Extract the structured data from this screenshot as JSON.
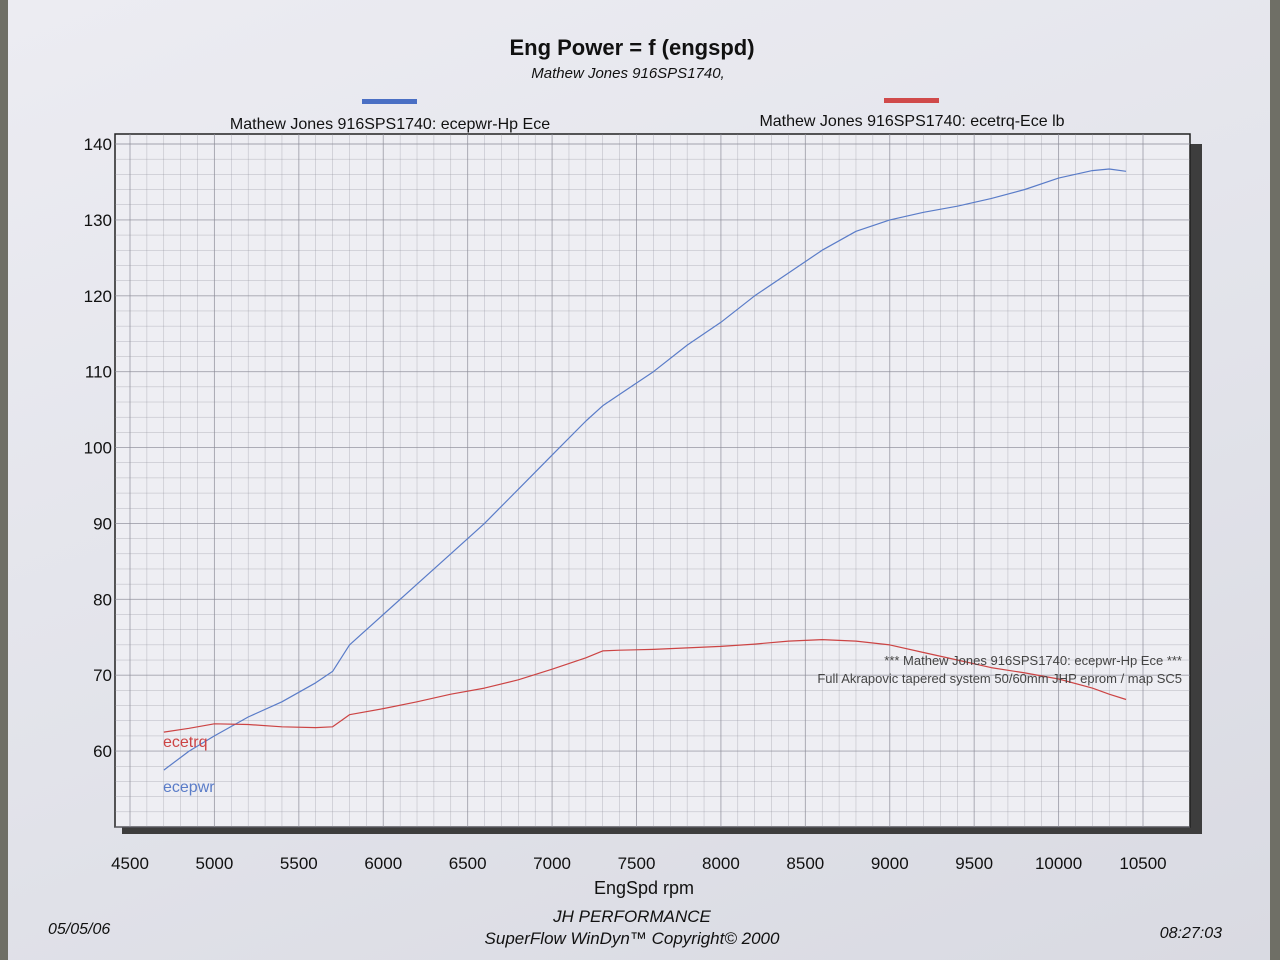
{
  "header": {
    "title": "Eng Power = f (engspd)",
    "subtitle": "Mathew Jones 916SPS1740,"
  },
  "legend": {
    "power": "Mathew Jones 916SPS1740: ecepwr-Hp Ece",
    "torque": "Mathew Jones 916SPS1740: ecetrq-Ece lb"
  },
  "annotation": {
    "line1": "*** Mathew Jones 916SPS1740: ecepwr-Hp Ece ***",
    "line2": "Full Akrapovic tapered system 50/60mm  JHP eprom / map SC5"
  },
  "footer": {
    "date": "05/05/06",
    "company": "JH PERFORMANCE",
    "software": "SuperFlow WinDyn™  Copyright© 2000",
    "time": "08:27:03"
  },
  "colors": {
    "power": "#5a7cc8",
    "torque": "#cc4444",
    "grid": "#8a8a95",
    "legend_power": "#4a6fc4",
    "legend_torque": "#d04a4a"
  },
  "chart_data": {
    "type": "line",
    "title": "Eng Power = f (engspd)",
    "subtitle": "Mathew Jones 916SPS1740,",
    "xlabel": "EngSpd  rpm",
    "ylabel": "",
    "xlim": [
      4500,
      10500
    ],
    "ylim": [
      50,
      140
    ],
    "xticks": [
      4500,
      5000,
      5500,
      6000,
      6500,
      7000,
      7500,
      8000,
      8500,
      9000,
      9500,
      10000,
      10500
    ],
    "yticks": [
      60,
      70,
      80,
      90,
      100,
      110,
      120,
      130,
      140
    ],
    "grid": true,
    "series": [
      {
        "name": "ecepwr",
        "legend": "Mathew Jones 916SPS1740: ecepwr-Hp Ece",
        "x": [
          4700,
          4850,
          5000,
          5200,
          5400,
          5600,
          5700,
          5800,
          6000,
          6200,
          6400,
          6600,
          6800,
          7000,
          7200,
          7300,
          7400,
          7600,
          7800,
          8000,
          8200,
          8400,
          8600,
          8800,
          9000,
          9200,
          9400,
          9600,
          9800,
          10000,
          10200,
          10300,
          10400
        ],
        "y": [
          57.5,
          60,
          62,
          64.5,
          66.5,
          69,
          70.5,
          74,
          78,
          82,
          86,
          90,
          94.5,
          99,
          103.5,
          105.5,
          107,
          110,
          113.5,
          116.5,
          120,
          123,
          126,
          128.5,
          130,
          131,
          131.8,
          132.8,
          134,
          135.5,
          136.5,
          136.7,
          136.4
        ]
      },
      {
        "name": "ecetrq",
        "legend": "Mathew Jones 916SPS1740: ecetrq-Ece lb",
        "x": [
          4700,
          4850,
          5000,
          5200,
          5400,
          5600,
          5700,
          5800,
          6000,
          6200,
          6400,
          6600,
          6800,
          7000,
          7200,
          7300,
          7400,
          7600,
          7800,
          8000,
          8200,
          8400,
          8600,
          8800,
          9000,
          9200,
          9400,
          9600,
          9800,
          10000,
          10200,
          10300,
          10400
        ],
        "y": [
          62.5,
          63,
          63.6,
          63.5,
          63.2,
          63.1,
          63.2,
          64.8,
          65.6,
          66.5,
          67.5,
          68.3,
          69.4,
          70.8,
          72.3,
          73.2,
          73.3,
          73.4,
          73.6,
          73.8,
          74.1,
          74.5,
          74.7,
          74.5,
          74,
          73,
          72,
          71,
          70.3,
          69.5,
          68.3,
          67.5,
          66.8
        ]
      }
    ],
    "series_labels": {
      "ecepwr": "ecepwr",
      "ecetrq": "ecetrq"
    }
  }
}
